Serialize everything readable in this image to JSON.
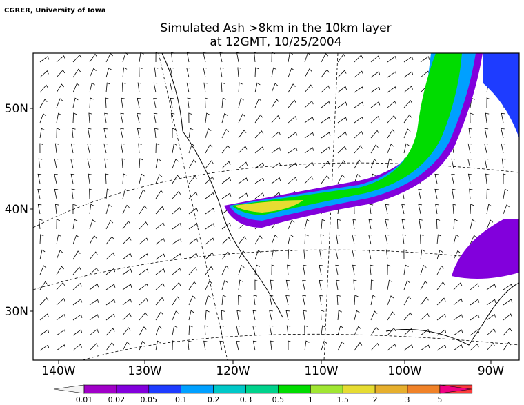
{
  "credit": "CGRER, University of Iowa",
  "title": {
    "line1": "Simulated Ash >8km in the 10km layer",
    "line2": "at 12GMT, 10/25/2004"
  },
  "x_axis": {
    "labels": [
      "140W",
      "130W",
      "120W",
      "110W",
      "100W",
      "90W"
    ]
  },
  "y_axis": {
    "labels": [
      "30N",
      "40N",
      "50N"
    ]
  },
  "colorbar": {
    "labels": [
      "0.01",
      "0.02",
      "0.05",
      "0.1",
      "0.2",
      "0.3",
      "0.5",
      "1",
      "1.5",
      "2",
      "3",
      "5"
    ],
    "colors": [
      "#f4f4f4",
      "#a000c8",
      "#8200dc",
      "#1e3cff",
      "#00a0ff",
      "#00c8c8",
      "#00d28c",
      "#00dc00",
      "#a0e632",
      "#e6dc32",
      "#e6af2d",
      "#f08228",
      "#fa3c3c",
      "#f00082"
    ]
  }
}
